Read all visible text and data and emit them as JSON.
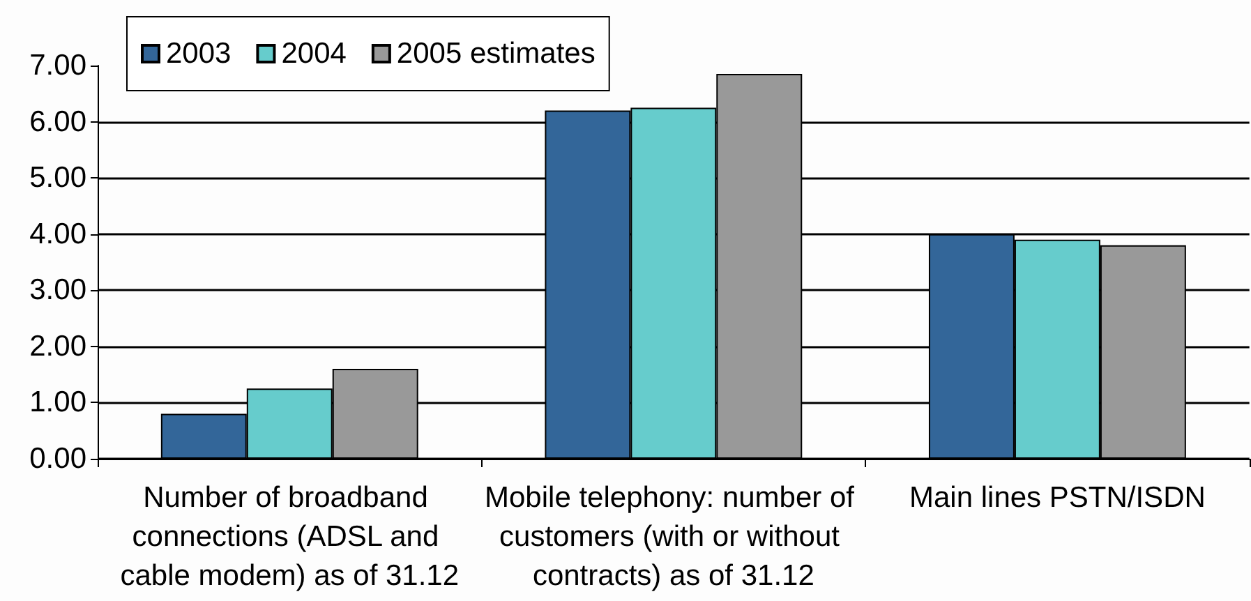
{
  "chart_data": {
    "type": "bar",
    "categories": [
      "Number of broadband connections (ADSL and cable modem) as of 31.12",
      "Mobile telephony: number of customers (with or without contracts) as of 31.12",
      "Main lines PSTN/ISDN"
    ],
    "series": [
      {
        "name": "2003",
        "color": "#336699",
        "values": [
          0.8,
          6.2,
          4.0
        ]
      },
      {
        "name": "2004",
        "color": "#66cccc",
        "values": [
          1.25,
          6.25,
          3.9
        ]
      },
      {
        "name": "2005 estimates",
        "color": "#999999",
        "values": [
          1.6,
          6.85,
          3.8
        ]
      }
    ],
    "ylim": [
      0,
      7
    ],
    "yticks": [
      {
        "value": 0,
        "label": "0.00"
      },
      {
        "value": 1,
        "label": "1.00"
      },
      {
        "value": 2,
        "label": "2.00"
      },
      {
        "value": 3,
        "label": "3.00"
      },
      {
        "value": 4,
        "label": "4.00"
      },
      {
        "value": 5,
        "label": "5.00"
      },
      {
        "value": 6,
        "label": "6.00"
      },
      {
        "value": 7,
        "label": "7.00"
      }
    ],
    "grid": "y",
    "legend": "top left"
  }
}
